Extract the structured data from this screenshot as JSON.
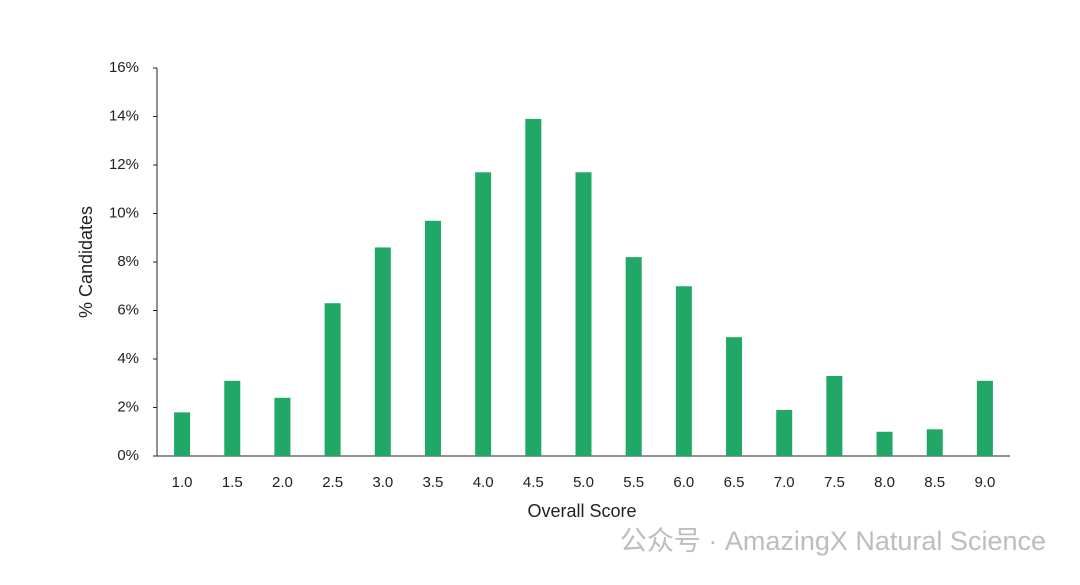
{
  "chart_data": {
    "type": "bar",
    "x_label": "Overall Score",
    "y_label": "% Candidates",
    "categories": [
      "1.0",
      "1.5",
      "2.0",
      "2.5",
      "3.0",
      "3.5",
      "4.0",
      "4.5",
      "5.0",
      "5.5",
      "6.0",
      "6.5",
      "7.0",
      "7.5",
      "8.0",
      "8.5",
      "9.0"
    ],
    "values": [
      1.8,
      3.1,
      2.4,
      6.3,
      8.6,
      9.7,
      11.7,
      13.9,
      11.7,
      8.2,
      7.0,
      4.9,
      1.9,
      3.3,
      1.0,
      1.1,
      3.1
    ],
    "color": "#21a866",
    "ylim": [
      0,
      16
    ],
    "yticks": [
      {
        "value": 0,
        "label": "0%"
      },
      {
        "value": 2,
        "label": "2%"
      },
      {
        "value": 4,
        "label": "4%"
      },
      {
        "value": 6,
        "label": "6%"
      },
      {
        "value": 8,
        "label": "8%"
      },
      {
        "value": 10,
        "label": "10%"
      },
      {
        "value": 12,
        "label": "12%"
      },
      {
        "value": 14,
        "label": "14%"
      },
      {
        "value": 16,
        "label": "16%"
      }
    ],
    "grid": false,
    "watermark": "公众号 · AmazingX Natural Science"
  }
}
